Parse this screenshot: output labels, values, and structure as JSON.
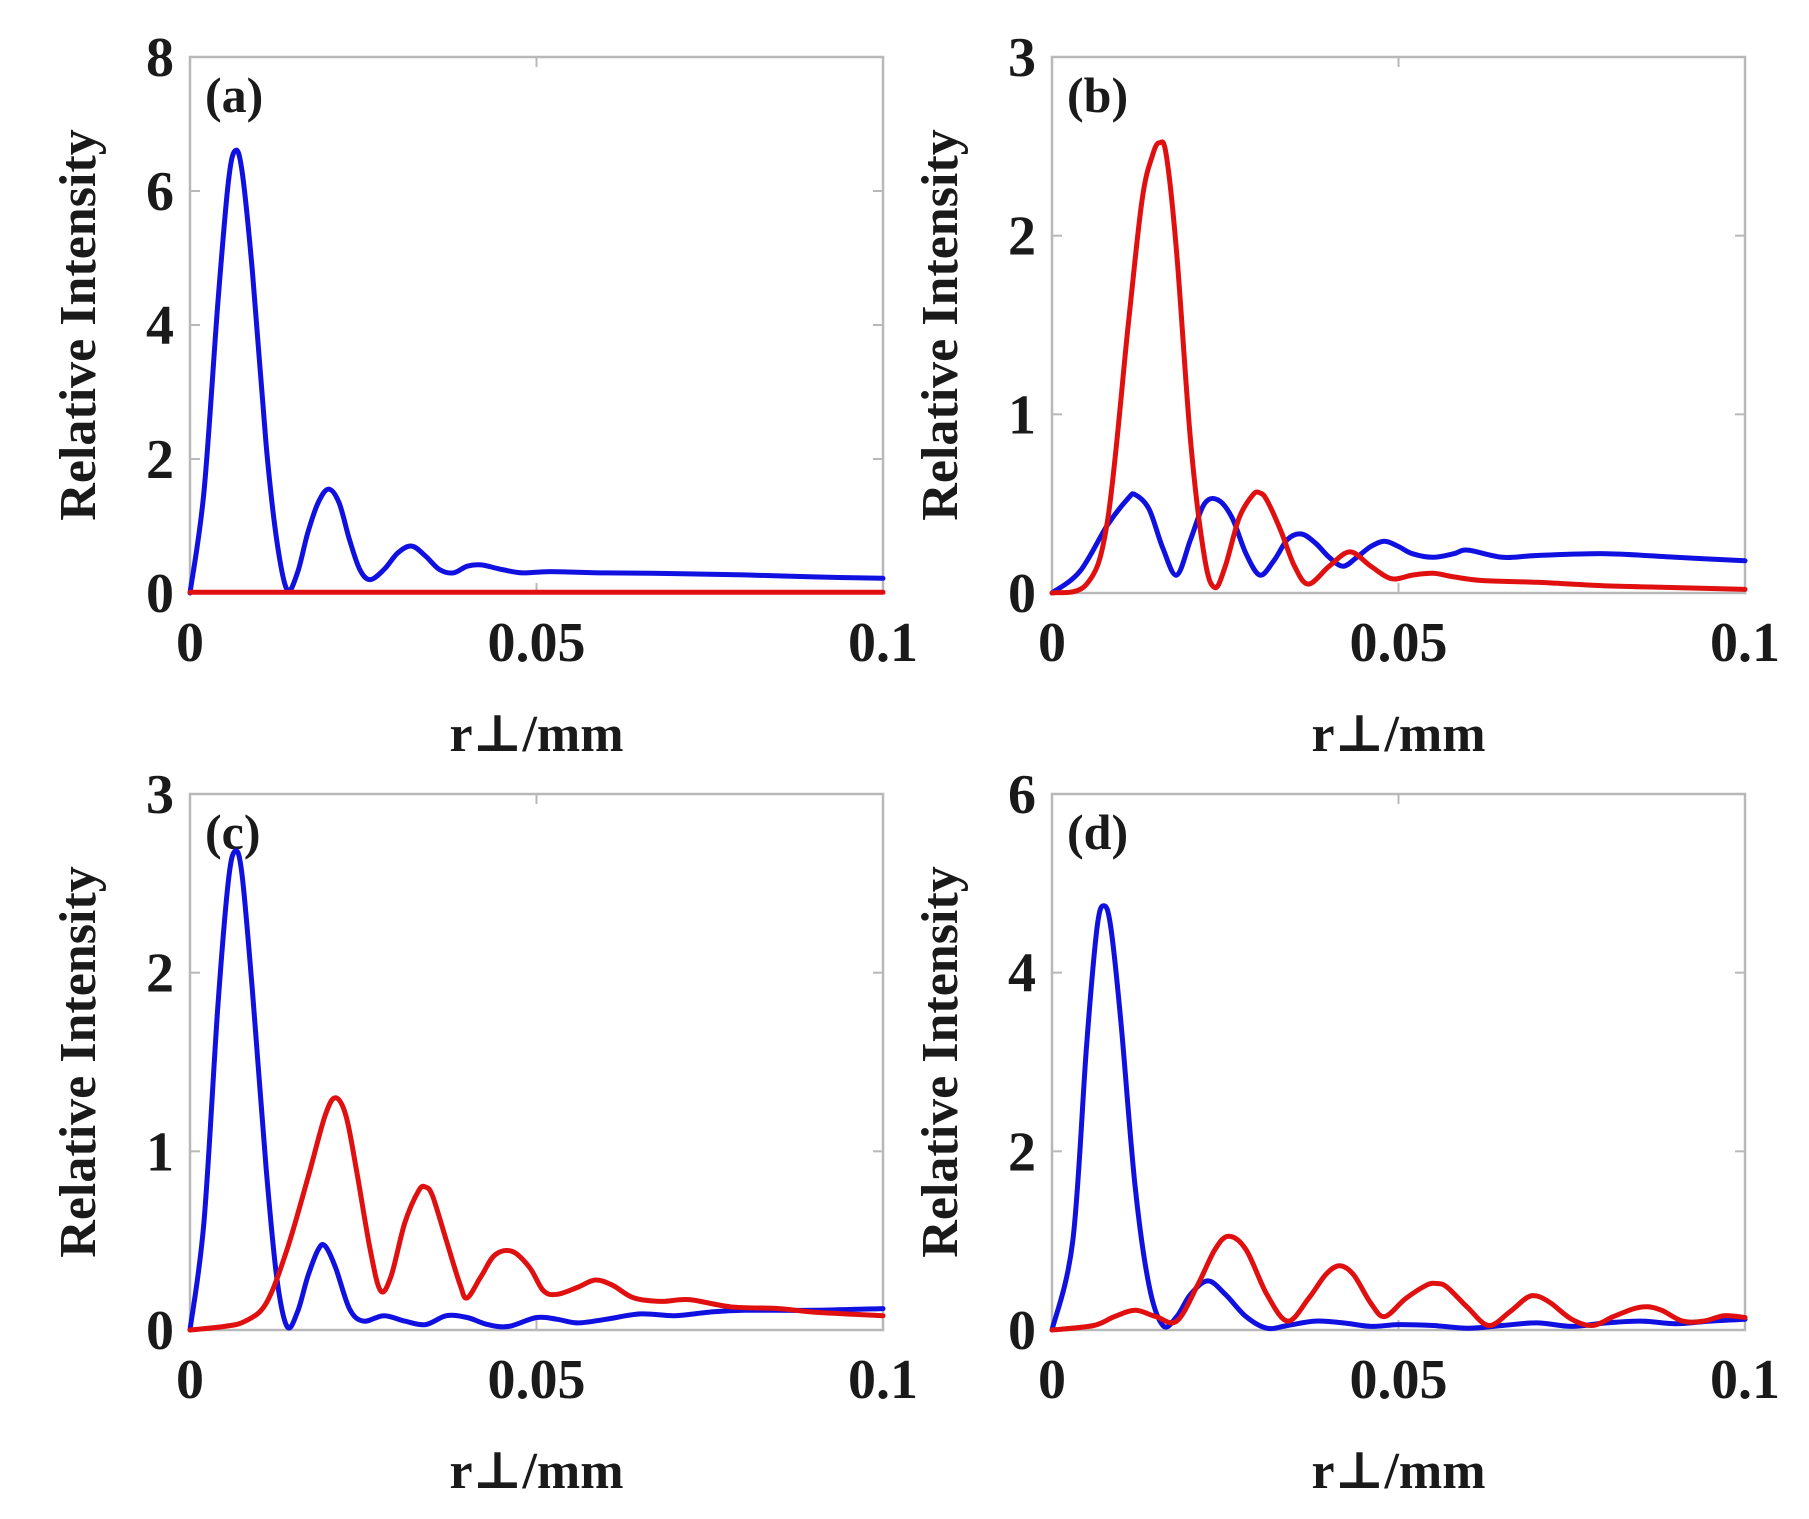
{
  "colors": {
    "series_1": "#1010e0",
    "series_2": "#e01010",
    "frame": "#b8b8b8",
    "text": "#1a1a1a"
  },
  "chart_data": [
    {
      "type": "line",
      "panel_label": "(a)",
      "xlabel": "r⊥/mm",
      "ylabel": "Relative Intensity",
      "xlim": [
        0,
        0.1
      ],
      "ylim": [
        0,
        8
      ],
      "xticks": [
        0,
        0.05,
        0.1
      ],
      "xtick_labels": [
        "0",
        "0.05",
        "0.1"
      ],
      "yticks": [
        0,
        2,
        4,
        6,
        8
      ],
      "ytick_labels": [
        "0",
        "2",
        "4",
        "6",
        "8"
      ],
      "grid": false,
      "series": [
        {
          "name": "blue",
          "color": "#1010e0",
          "x": [
            0,
            0.002,
            0.004,
            0.0055,
            0.0065,
            0.0075,
            0.009,
            0.011,
            0.0125,
            0.014,
            0.0155,
            0.017,
            0.0185,
            0.02,
            0.0215,
            0.023,
            0.0245,
            0.026,
            0.028,
            0.03,
            0.032,
            0.034,
            0.036,
            0.038,
            0.04,
            0.042,
            0.045,
            0.048,
            0.052,
            0.06,
            0.07,
            0.08,
            0.09,
            0.1
          ],
          "y": [
            0,
            1.5,
            4.3,
            6.1,
            6.6,
            6.3,
            4.8,
            2.2,
            0.8,
            0.05,
            0.3,
            0.9,
            1.35,
            1.55,
            1.35,
            0.8,
            0.35,
            0.2,
            0.35,
            0.6,
            0.7,
            0.55,
            0.35,
            0.3,
            0.4,
            0.42,
            0.35,
            0.3,
            0.32,
            0.3,
            0.29,
            0.27,
            0.24,
            0.22
          ]
        },
        {
          "name": "red",
          "color": "#e01010",
          "x": [
            0,
            0.1
          ],
          "y": [
            0.01,
            0.01
          ]
        }
      ]
    },
    {
      "type": "line",
      "panel_label": "(b)",
      "xlabel": "r⊥/mm",
      "ylabel": "Relative Intensity",
      "xlim": [
        0,
        0.1
      ],
      "ylim": [
        0,
        3
      ],
      "xticks": [
        0,
        0.05,
        0.1
      ],
      "xtick_labels": [
        "0",
        "0.05",
        "0.1"
      ],
      "yticks": [
        0,
        1,
        2,
        3
      ],
      "ytick_labels": [
        "0",
        "1",
        "2",
        "3"
      ],
      "grid": false,
      "series": [
        {
          "name": "blue",
          "color": "#1010e0",
          "x": [
            0,
            0.004,
            0.008,
            0.011,
            0.012,
            0.014,
            0.016,
            0.018,
            0.02,
            0.022,
            0.024,
            0.026,
            0.028,
            0.03,
            0.032,
            0.034,
            0.036,
            0.038,
            0.04,
            0.042,
            0.044,
            0.046,
            0.048,
            0.05,
            0.052,
            0.055,
            0.058,
            0.06,
            0.065,
            0.07,
            0.08,
            0.09,
            0.1
          ],
          "y": [
            0,
            0.12,
            0.38,
            0.53,
            0.55,
            0.47,
            0.25,
            0.1,
            0.3,
            0.5,
            0.52,
            0.42,
            0.22,
            0.1,
            0.18,
            0.3,
            0.33,
            0.28,
            0.2,
            0.15,
            0.2,
            0.26,
            0.29,
            0.26,
            0.22,
            0.2,
            0.22,
            0.24,
            0.2,
            0.21,
            0.22,
            0.2,
            0.18
          ]
        },
        {
          "name": "red",
          "color": "#e01010",
          "x": [
            0,
            0.005,
            0.008,
            0.011,
            0.013,
            0.0145,
            0.0155,
            0.0165,
            0.018,
            0.02,
            0.022,
            0.0235,
            0.025,
            0.027,
            0.029,
            0.03,
            0.031,
            0.033,
            0.035,
            0.037,
            0.04,
            0.043,
            0.046,
            0.049,
            0.052,
            0.055,
            0.058,
            0.062,
            0.07,
            0.08,
            0.09,
            0.1
          ],
          "y": [
            0,
            0.05,
            0.4,
            1.5,
            2.2,
            2.45,
            2.52,
            2.45,
            1.9,
            0.85,
            0.2,
            0.03,
            0.15,
            0.42,
            0.55,
            0.56,
            0.52,
            0.35,
            0.15,
            0.05,
            0.15,
            0.23,
            0.15,
            0.08,
            0.1,
            0.11,
            0.09,
            0.07,
            0.06,
            0.04,
            0.03,
            0.02
          ]
        }
      ]
    },
    {
      "type": "line",
      "panel_label": "(c)",
      "xlabel": "r⊥/mm",
      "ylabel": "Relative Intensity",
      "xlim": [
        0,
        0.1
      ],
      "ylim": [
        0,
        3
      ],
      "xticks": [
        0,
        0.05,
        0.1
      ],
      "xtick_labels": [
        "0",
        "0.05",
        "0.1"
      ],
      "yticks": [
        0,
        1,
        2,
        3
      ],
      "ytick_labels": [
        "0",
        "1",
        "2",
        "3"
      ],
      "grid": false,
      "series": [
        {
          "name": "blue",
          "color": "#1010e0",
          "x": [
            0,
            0.002,
            0.004,
            0.0055,
            0.0065,
            0.0075,
            0.009,
            0.011,
            0.0125,
            0.014,
            0.0155,
            0.017,
            0.0185,
            0.0195,
            0.021,
            0.023,
            0.025,
            0.028,
            0.031,
            0.034,
            0.037,
            0.04,
            0.043,
            0.046,
            0.05,
            0.053,
            0.056,
            0.06,
            0.065,
            0.07,
            0.075,
            0.08,
            0.09,
            0.1
          ],
          "y": [
            0,
            0.6,
            1.8,
            2.5,
            2.68,
            2.55,
            1.9,
            0.9,
            0.3,
            0.02,
            0.1,
            0.3,
            0.45,
            0.47,
            0.35,
            0.12,
            0.05,
            0.08,
            0.05,
            0.03,
            0.08,
            0.07,
            0.03,
            0.02,
            0.07,
            0.06,
            0.04,
            0.06,
            0.09,
            0.08,
            0.1,
            0.11,
            0.11,
            0.12
          ]
        },
        {
          "name": "red",
          "color": "#e01010",
          "x": [
            0,
            0.005,
            0.008,
            0.011,
            0.014,
            0.017,
            0.0195,
            0.021,
            0.0225,
            0.024,
            0.026,
            0.0275,
            0.029,
            0.031,
            0.033,
            0.034,
            0.035,
            0.037,
            0.039,
            0.04,
            0.042,
            0.044,
            0.0465,
            0.049,
            0.051,
            0.053,
            0.056,
            0.0585,
            0.061,
            0.064,
            0.068,
            0.072,
            0.078,
            0.085,
            0.09,
            0.1
          ],
          "y": [
            0,
            0.02,
            0.05,
            0.15,
            0.45,
            0.85,
            1.2,
            1.3,
            1.2,
            0.9,
            0.45,
            0.22,
            0.3,
            0.6,
            0.78,
            0.8,
            0.75,
            0.5,
            0.25,
            0.18,
            0.3,
            0.42,
            0.44,
            0.35,
            0.22,
            0.2,
            0.24,
            0.28,
            0.25,
            0.18,
            0.16,
            0.17,
            0.13,
            0.12,
            0.1,
            0.08
          ]
        }
      ]
    },
    {
      "type": "line",
      "panel_label": "(d)",
      "xlabel": "r⊥/mm",
      "ylabel": "Relative Intensity",
      "xlim": [
        0,
        0.1
      ],
      "ylim": [
        0,
        6
      ],
      "xticks": [
        0,
        0.05,
        0.1
      ],
      "xtick_labels": [
        "0",
        "0.05",
        "0.1"
      ],
      "yticks": [
        0,
        2,
        4,
        6
      ],
      "ytick_labels": [
        "0",
        "2",
        "4",
        "6"
      ],
      "grid": false,
      "series": [
        {
          "name": "blue",
          "color": "#1010e0",
          "x": [
            0,
            0.003,
            0.005,
            0.0065,
            0.0075,
            0.0085,
            0.01,
            0.012,
            0.014,
            0.016,
            0.018,
            0.02,
            0.0225,
            0.025,
            0.028,
            0.031,
            0.034,
            0.038,
            0.042,
            0.046,
            0.05,
            0.055,
            0.06,
            0.065,
            0.07,
            0.075,
            0.08,
            0.085,
            0.09,
            0.095,
            0.1
          ],
          "y": [
            0,
            1.0,
            3.2,
            4.5,
            4.75,
            4.5,
            3.4,
            1.6,
            0.5,
            0.05,
            0.15,
            0.4,
            0.55,
            0.4,
            0.15,
            0.02,
            0.05,
            0.1,
            0.08,
            0.04,
            0.06,
            0.05,
            0.02,
            0.05,
            0.08,
            0.04,
            0.08,
            0.1,
            0.07,
            0.1,
            0.12
          ]
        },
        {
          "name": "red",
          "color": "#e01010",
          "x": [
            0,
            0.006,
            0.009,
            0.012,
            0.015,
            0.018,
            0.021,
            0.0235,
            0.0255,
            0.028,
            0.031,
            0.034,
            0.037,
            0.0395,
            0.0415,
            0.0435,
            0.046,
            0.048,
            0.051,
            0.054,
            0.0555,
            0.057,
            0.06,
            0.063,
            0.066,
            0.0685,
            0.07,
            0.072,
            0.075,
            0.078,
            0.081,
            0.084,
            0.086,
            0.088,
            0.091,
            0.094,
            0.097,
            0.1
          ],
          "y": [
            0,
            0.05,
            0.15,
            0.22,
            0.15,
            0.1,
            0.5,
            0.9,
            1.05,
            0.9,
            0.4,
            0.1,
            0.35,
            0.62,
            0.72,
            0.62,
            0.3,
            0.15,
            0.35,
            0.5,
            0.52,
            0.48,
            0.25,
            0.05,
            0.2,
            0.36,
            0.38,
            0.3,
            0.12,
            0.05,
            0.15,
            0.24,
            0.26,
            0.22,
            0.1,
            0.1,
            0.16,
            0.14
          ]
        }
      ]
    }
  ]
}
